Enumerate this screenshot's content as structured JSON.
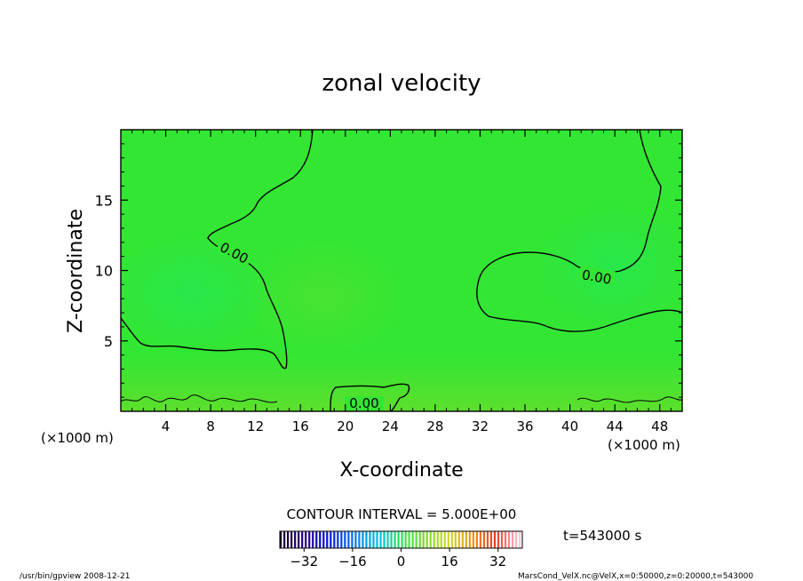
{
  "chart_data": {
    "type": "contour",
    "title": "zonal velocity",
    "xlabel": "X-coordinate",
    "ylabel": "Z-coordinate",
    "x_unit_label": "(×1000 m)",
    "z_unit_label": "(×1000 m)",
    "xlim": [
      0,
      50
    ],
    "ylim": [
      0,
      20
    ],
    "x_ticks": [
      4,
      8,
      12,
      16,
      20,
      24,
      28,
      32,
      36,
      40,
      44,
      48
    ],
    "x_tick_labels": [
      "4",
      "8",
      "12",
      "16",
      "20",
      "24",
      "28",
      "32",
      "36",
      "40",
      "44",
      "48"
    ],
    "y_ticks": [
      5,
      10,
      15
    ],
    "y_tick_labels": [
      "5",
      "10",
      "15"
    ],
    "contour_level_labels": [
      "0.00",
      "0.00",
      "0.00"
    ],
    "contour_interval_text": "CONTOUR INTERVAL = 5.000E+00",
    "colorbar": {
      "min": -40,
      "max": 40,
      "ticks": [
        -32,
        -16,
        0,
        16,
        32
      ],
      "tick_labels": [
        "−32",
        "−16",
        "0",
        "16",
        "32"
      ]
    },
    "time_label": "t=543000 s",
    "field_color_value_approx": 0,
    "fill_color": "#33e633"
  },
  "footer": {
    "left": "/usr/bin/gpview 2008-12-21",
    "right": "MarsCond_VelX.nc@VelX,x=0:50000,z=0:20000,t=543000"
  }
}
